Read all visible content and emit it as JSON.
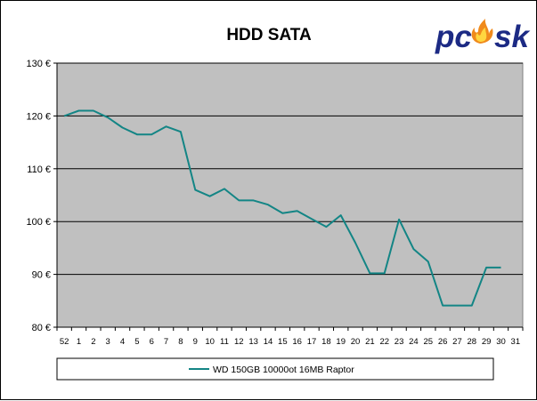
{
  "logo": {
    "text": "pcsk",
    "prefix": "pc",
    "suffix": "sk"
  },
  "chart_data": {
    "type": "line",
    "title": "HDD SATA",
    "xlabel": "",
    "ylabel": "",
    "x": [
      "52",
      "1",
      "2",
      "3",
      "4",
      "5",
      "6",
      "7",
      "8",
      "9",
      "10",
      "11",
      "12",
      "13",
      "14",
      "15",
      "16",
      "17",
      "18",
      "19",
      "20",
      "21",
      "22",
      "23",
      "24",
      "25",
      "26",
      "27",
      "28",
      "29",
      "30",
      "31"
    ],
    "ylim": [
      80,
      130
    ],
    "yticks": [
      80,
      90,
      100,
      110,
      120,
      130
    ],
    "y_unit": " €",
    "grid": true,
    "legend_position": "bottom",
    "series": [
      {
        "name": "WD 150GB 10000ot 16MB Raptor",
        "color": "#138585",
        "values": [
          120,
          121,
          121,
          119.7,
          117.8,
          116.5,
          116.5,
          118,
          117,
          106,
          104.8,
          106.2,
          104,
          104,
          103.2,
          101.6,
          102,
          100.5,
          99,
          101.2,
          96,
          90.2,
          90.2,
          100.4,
          94.8,
          92.4,
          84.1,
          84.1,
          84.1,
          91.3,
          91.3,
          null
        ]
      }
    ],
    "colors": {
      "plot_background": "#c0c0c0",
      "gridline": "#000000",
      "line": "#138585",
      "logo_text": "#1c2a84",
      "logo_flame": "#f08a1c"
    }
  }
}
